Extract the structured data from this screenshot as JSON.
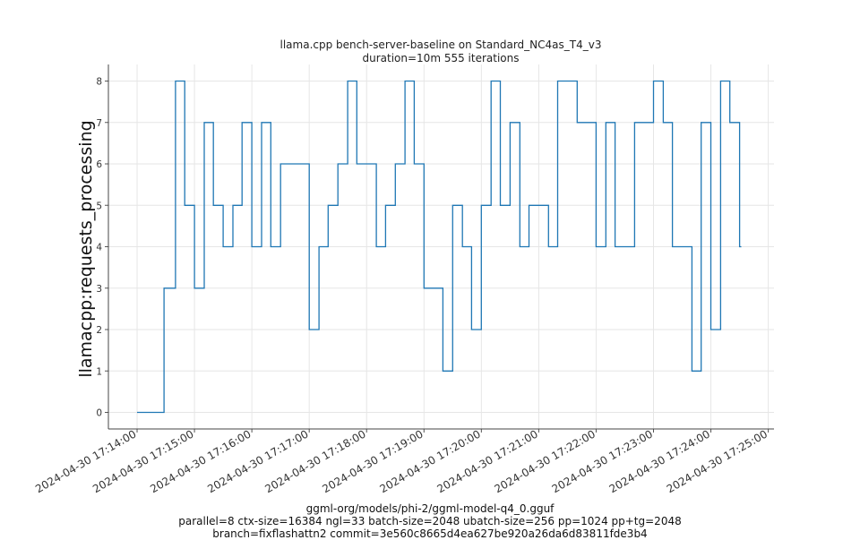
{
  "chart_data": {
    "type": "line",
    "title_lines": [
      "llama.cpp bench-server-baseline on Standard_NC4as_T4_v3",
      "duration=10m 555 iterations"
    ],
    "ylabel": "llamacpp:requests_processing",
    "xlabel_lines": [
      "ggml-org/models/phi-2/ggml-model-q4_0.gguf",
      "parallel=8 ctx-size=16384 ngl=33 batch-size=2048 ubatch-size=256 pp=1024 pp+tg=2048",
      "branch=fixflashattn2 commit=3e560c8665d4ea627be920a26da6d83811fde3b4"
    ],
    "x_unit": "minutes since 2024-04-30 17:14:00",
    "xlim": [
      -0.5,
      11.1
    ],
    "ylim": [
      -0.4,
      8.4
    ],
    "x_ticks": [
      {
        "value": 0,
        "label": "2024-04-30 17:14:00"
      },
      {
        "value": 1,
        "label": "2024-04-30 17:15:00"
      },
      {
        "value": 2,
        "label": "2024-04-30 17:16:00"
      },
      {
        "value": 3,
        "label": "2024-04-30 17:17:00"
      },
      {
        "value": 4,
        "label": "2024-04-30 17:18:00"
      },
      {
        "value": 5,
        "label": "2024-04-30 17:19:00"
      },
      {
        "value": 6,
        "label": "2024-04-30 17:20:00"
      },
      {
        "value": 7,
        "label": "2024-04-30 17:21:00"
      },
      {
        "value": 8,
        "label": "2024-04-30 17:22:00"
      },
      {
        "value": 9,
        "label": "2024-04-30 17:23:00"
      },
      {
        "value": 10,
        "label": "2024-04-30 17:24:00"
      },
      {
        "value": 11,
        "label": "2024-04-30 17:25:00"
      }
    ],
    "y_ticks": [
      0,
      1,
      2,
      3,
      4,
      5,
      6,
      7,
      8
    ],
    "series": [
      {
        "name": "requests_processing",
        "color": "#1f77b4",
        "steps": [
          [
            0.0,
            0
          ],
          [
            0.47,
            3
          ],
          [
            0.67,
            8
          ],
          [
            0.83,
            5
          ],
          [
            1.0,
            3
          ],
          [
            1.17,
            7
          ],
          [
            1.33,
            5
          ],
          [
            1.5,
            4
          ],
          [
            1.67,
            5
          ],
          [
            1.83,
            7
          ],
          [
            2.0,
            4
          ],
          [
            2.17,
            7
          ],
          [
            2.33,
            4
          ],
          [
            2.5,
            6
          ],
          [
            3.0,
            2
          ],
          [
            3.17,
            4
          ],
          [
            3.33,
            5
          ],
          [
            3.5,
            6
          ],
          [
            3.67,
            8
          ],
          [
            3.83,
            6
          ],
          [
            4.17,
            4
          ],
          [
            4.33,
            5
          ],
          [
            4.5,
            6
          ],
          [
            4.67,
            8
          ],
          [
            4.83,
            6
          ],
          [
            5.0,
            3
          ],
          [
            5.33,
            1
          ],
          [
            5.5,
            5
          ],
          [
            5.67,
            4
          ],
          [
            5.83,
            2
          ],
          [
            6.0,
            5
          ],
          [
            6.17,
            8
          ],
          [
            6.33,
            5
          ],
          [
            6.5,
            7
          ],
          [
            6.67,
            4
          ],
          [
            6.83,
            5
          ],
          [
            7.17,
            4
          ],
          [
            7.33,
            8
          ],
          [
            7.67,
            7
          ],
          [
            8.0,
            4
          ],
          [
            8.17,
            7
          ],
          [
            8.33,
            4
          ],
          [
            8.67,
            7
          ],
          [
            9.0,
            8
          ],
          [
            9.17,
            7
          ],
          [
            9.33,
            4
          ],
          [
            9.67,
            1
          ],
          [
            9.83,
            7
          ],
          [
            10.0,
            2
          ],
          [
            10.17,
            8
          ],
          [
            10.33,
            7
          ],
          [
            10.5,
            4
          ],
          [
            10.53,
            4
          ]
        ]
      }
    ]
  }
}
